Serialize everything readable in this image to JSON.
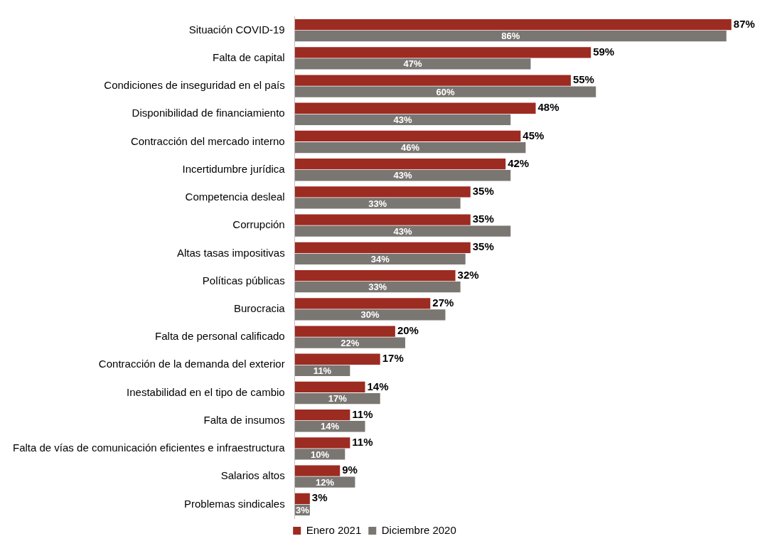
{
  "chart_data": {
    "type": "bar",
    "orientation": "horizontal",
    "categories": [
      "Situación COVID-19",
      "Falta de capital",
      "Condiciones de inseguridad en el país",
      "Disponibilidad de financiamiento",
      "Contracción del mercado interno",
      "Incertidumbre jurídica",
      "Competencia desleal",
      "Corrupción",
      "Altas tasas impositivas",
      "Políticas públicas",
      "Burocracia",
      "Falta de personal calificado",
      "Contracción de la demanda del exterior",
      "Inestabilidad en el tipo de cambio",
      "Falta de insumos",
      "Falta de vías de comunicación eficientes e infraestructura",
      "Salarios altos",
      "Problemas sindicales"
    ],
    "series": [
      {
        "name": "Enero 2021",
        "color": "#9c2b22",
        "values": [
          87,
          59,
          55,
          48,
          45,
          42,
          35,
          35,
          35,
          32,
          27,
          20,
          17,
          14,
          11,
          11,
          9,
          3
        ],
        "value_labels": [
          "87%",
          "59%",
          "55%",
          "48%",
          "45%",
          "42%",
          "35%",
          "35%",
          "35%",
          "32%",
          "27%",
          "20%",
          "17%",
          "14%",
          "11%",
          "11%",
          "9%",
          "3%"
        ]
      },
      {
        "name": "Diciembre 2020",
        "color": "#7a7672",
        "values": [
          86,
          47,
          60,
          43,
          46,
          43,
          33,
          43,
          34,
          33,
          30,
          22,
          11,
          17,
          14,
          10,
          12,
          3
        ],
        "value_labels": [
          "86%",
          "47%",
          "60%",
          "43%",
          "46%",
          "43%",
          "33%",
          "43%",
          "34%",
          "33%",
          "30%",
          "22%",
          "11%",
          "17%",
          "14%",
          "10%",
          "12%",
          "3%"
        ]
      }
    ],
    "legend": "bottom"
  }
}
